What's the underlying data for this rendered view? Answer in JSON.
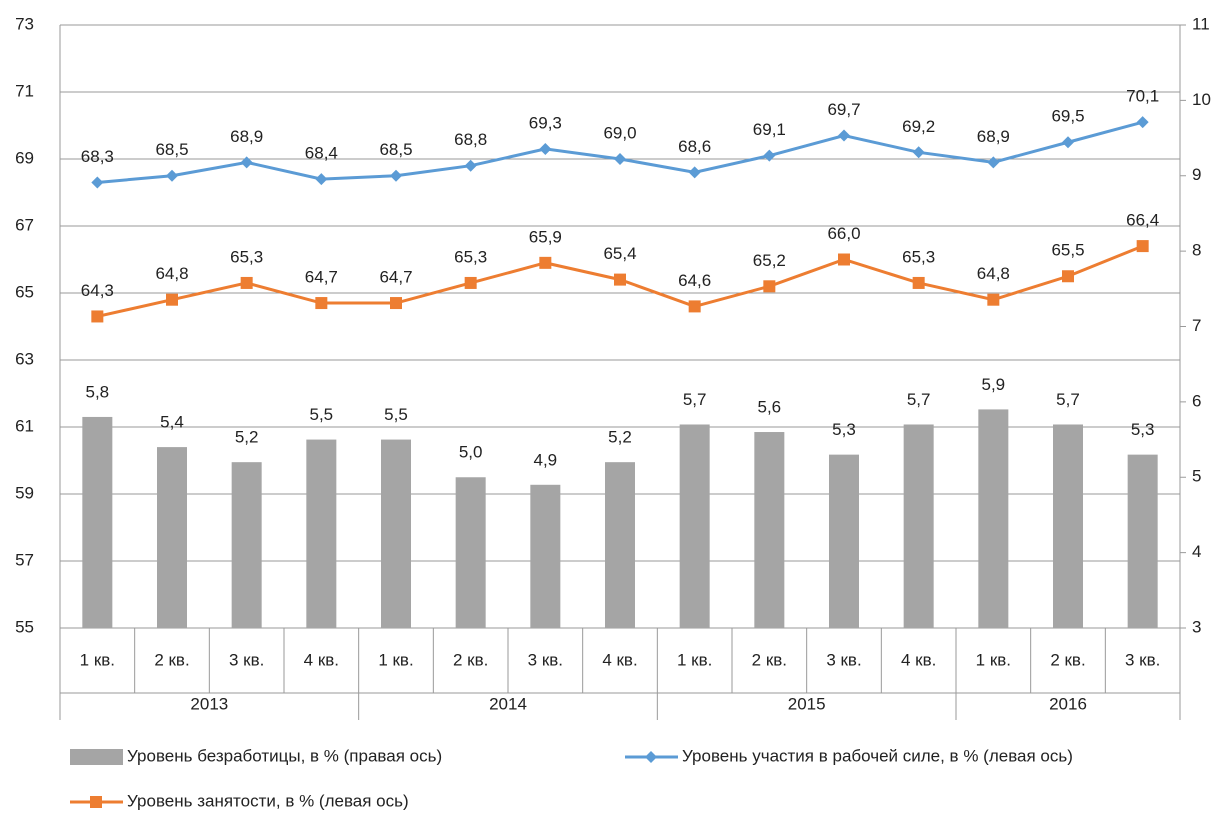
{
  "chart_data": {
    "type": "combo",
    "categories": [
      "1 кв.",
      "2 кв.",
      "3 кв.",
      "4 кв.",
      "1 кв.",
      "2 кв.",
      "3 кв.",
      "4 кв.",
      "1 кв.",
      "2 кв.",
      "3 кв.",
      "4 кв.",
      "1 кв.",
      "2 кв.",
      "3 кв."
    ],
    "category_groups": [
      "2013",
      "2014",
      "2015",
      "2016"
    ],
    "ylim": [
      55,
      73
    ],
    "yticks": [
      55,
      57,
      59,
      61,
      63,
      65,
      67,
      69,
      71,
      73
    ],
    "y2lim": [
      3,
      11
    ],
    "y2ticks": [
      3,
      4,
      5,
      6,
      7,
      8,
      9,
      10,
      11
    ],
    "grid": true,
    "series": [
      {
        "name": "Уровень безработицы, в % (правая ось)",
        "type": "bar",
        "axis": "y2",
        "color": "#a5a5a5",
        "values": [
          5.8,
          5.4,
          5.2,
          5.5,
          5.5,
          5.0,
          4.9,
          5.2,
          5.7,
          5.6,
          5.3,
          5.7,
          5.9,
          5.7,
          5.3
        ],
        "value_labels": [
          "5,8",
          "5,4",
          "5,2",
          "5,5",
          "5,5",
          "5,0",
          "4,9",
          "5,2",
          "5,7",
          "5,6",
          "5,3",
          "5,7",
          "5,9",
          "5,7",
          "5,3"
        ]
      },
      {
        "name": "Уровень участия в рабочей силе, в % (левая ось)",
        "type": "line",
        "marker": "diamond",
        "color": "#5b9bd5",
        "values": [
          68.3,
          68.5,
          68.9,
          68.4,
          68.5,
          68.8,
          69.3,
          69.0,
          68.6,
          69.1,
          69.7,
          69.2,
          68.9,
          69.5,
          70.1
        ],
        "value_labels": [
          "68,3",
          "68,5",
          "68,9",
          "68,4",
          "68,5",
          "68,8",
          "69,3",
          "69,0",
          "68,6",
          "69,1",
          "69,7",
          "69,2",
          "68,9",
          "69,5",
          "70,1"
        ]
      },
      {
        "name": "Уровень занятости, в % (левая ось)",
        "type": "line",
        "marker": "square",
        "color": "#ed7d31",
        "values": [
          64.3,
          64.8,
          65.3,
          64.7,
          64.7,
          65.3,
          65.9,
          65.4,
          64.6,
          65.2,
          66.0,
          65.3,
          64.8,
          65.5,
          66.4
        ],
        "value_labels": [
          "64,3",
          "64,8",
          "65,3",
          "64,7",
          "64,7",
          "65,3",
          "65,9",
          "65,4",
          "64,6",
          "65,2",
          "66,0",
          "65,3",
          "64,8",
          "65,5",
          "66,4"
        ]
      }
    ]
  }
}
